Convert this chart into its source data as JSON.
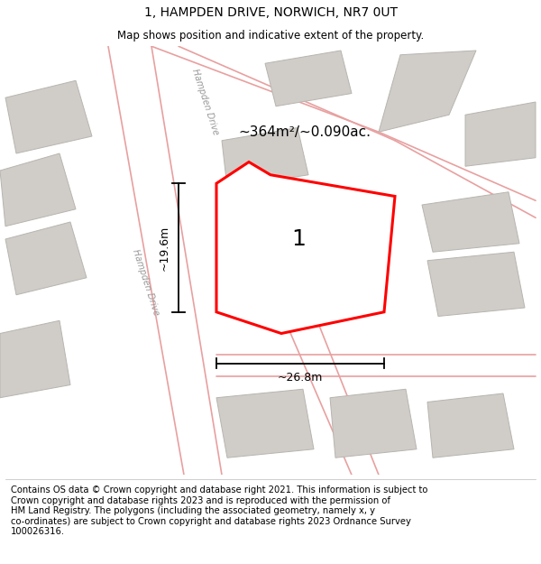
{
  "title": "1, HAMPDEN DRIVE, NORWICH, NR7 0UT",
  "subtitle": "Map shows position and indicative extent of the property.",
  "footer": "Contains OS data © Crown copyright and database right 2021. This information is subject to\nCrown copyright and database rights 2023 and is reproduced with the permission of\nHM Land Registry. The polygons (including the associated geometry, namely x, y\nco-ordinates) are subject to Crown copyright and database rights 2023 Ordnance Survey\n100026316.",
  "map_bg": "#e8e6e3",
  "plot_color": "#ff0000",
  "plot_fill": "#f5f3f0",
  "road_color": "#e8a0a0",
  "building_color": "#d0cdc8",
  "building_stroke": "#b8b5b0",
  "area_text": "~364m²/~0.090ac.",
  "label_text": "1",
  "dim_width": "~26.8m",
  "dim_height": "~19.6m",
  "road_label": "Hampden Drive",
  "title_fontsize": 10,
  "subtitle_fontsize": 8.5,
  "footer_fontsize": 7.2,
  "prop_x": [
    40,
    46,
    50,
    73,
    71,
    52,
    40
  ],
  "prop_y": [
    68,
    73,
    70,
    65,
    38,
    33,
    38
  ],
  "buildings": [
    [
      [
        3,
        75
      ],
      [
        17,
        79
      ],
      [
        14,
        92
      ],
      [
        1,
        88
      ]
    ],
    [
      [
        1,
        58
      ],
      [
        14,
        62
      ],
      [
        11,
        75
      ],
      [
        0,
        71
      ]
    ],
    [
      [
        3,
        42
      ],
      [
        16,
        46
      ],
      [
        13,
        59
      ],
      [
        1,
        55
      ]
    ],
    [
      [
        51,
        86
      ],
      [
        65,
        89
      ],
      [
        63,
        99
      ],
      [
        49,
        96
      ]
    ],
    [
      [
        70,
        80
      ],
      [
        83,
        84
      ],
      [
        88,
        99
      ],
      [
        74,
        98
      ]
    ],
    [
      [
        86,
        72
      ],
      [
        99,
        74
      ],
      [
        99,
        87
      ],
      [
        86,
        84
      ]
    ],
    [
      [
        80,
        52
      ],
      [
        96,
        54
      ],
      [
        94,
        66
      ],
      [
        78,
        63
      ]
    ],
    [
      [
        81,
        37
      ],
      [
        97,
        39
      ],
      [
        95,
        52
      ],
      [
        79,
        50
      ]
    ],
    [
      [
        42,
        4
      ],
      [
        58,
        6
      ],
      [
        56,
        20
      ],
      [
        40,
        18
      ]
    ],
    [
      [
        62,
        4
      ],
      [
        77,
        6
      ],
      [
        75,
        20
      ],
      [
        61,
        18
      ]
    ],
    [
      [
        80,
        4
      ],
      [
        95,
        6
      ],
      [
        93,
        19
      ],
      [
        79,
        17
      ]
    ],
    [
      [
        0,
        18
      ],
      [
        13,
        21
      ],
      [
        11,
        36
      ],
      [
        0,
        33
      ]
    ],
    [
      [
        42,
        67
      ],
      [
        57,
        70
      ],
      [
        55,
        81
      ],
      [
        41,
        78
      ]
    ]
  ],
  "roads": [
    [
      [
        20,
        100
      ],
      [
        34,
        0
      ]
    ],
    [
      [
        28,
        100
      ],
      [
        41,
        0
      ]
    ],
    [
      [
        28,
        100
      ],
      [
        70,
        80
      ]
    ],
    [
      [
        33,
        100
      ],
      [
        73,
        78
      ]
    ],
    [
      [
        70,
        80
      ],
      [
        99,
        64
      ]
    ],
    [
      [
        73,
        78
      ],
      [
        99,
        60
      ]
    ],
    [
      [
        52,
        38
      ],
      [
        65,
        0
      ]
    ],
    [
      [
        58,
        38
      ],
      [
        70,
        0
      ]
    ],
    [
      [
        40,
        28
      ],
      [
        99,
        28
      ]
    ],
    [
      [
        40,
        23
      ],
      [
        99,
        23
      ]
    ]
  ]
}
